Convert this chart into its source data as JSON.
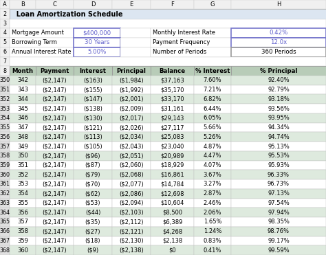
{
  "title": "Loan Amortization Schedule",
  "info_labels_left": [
    "Mortgage Amount",
    "Borrowing Term",
    "Annual Interest Rate"
  ],
  "info_values_left": [
    "$400,000",
    "30 Years",
    "5.00%"
  ],
  "info_labels_right": [
    "Monthly Interest Rate",
    "Payment Frequency",
    "Number of Periods"
  ],
  "info_values_right": [
    "0.42%",
    "12.0x",
    "360 Periods"
  ],
  "col_headers": [
    "Month",
    "Payment",
    "Interest",
    "Principal",
    "Balance",
    "% Interest",
    "% Principal"
  ],
  "row_numbers": [
    350,
    351,
    352,
    353,
    354,
    355,
    356,
    357,
    358,
    359,
    360,
    361,
    362,
    363,
    364,
    365,
    366,
    367,
    368
  ],
  "table_data": [
    [
      "342",
      "($2,147)",
      "($163)",
      "($1,984)",
      "$37,163",
      "7.60%",
      "92.40%"
    ],
    [
      "343",
      "($2,147)",
      "($155)",
      "($1,992)",
      "$35,170",
      "7.21%",
      "92.79%"
    ],
    [
      "344",
      "($2,147)",
      "($147)",
      "($2,001)",
      "$33,170",
      "6.82%",
      "93.18%"
    ],
    [
      "345",
      "($2,147)",
      "($138)",
      "($2,009)",
      "$31,161",
      "6.44%",
      "93.56%"
    ],
    [
      "346",
      "($2,147)",
      "($130)",
      "($2,017)",
      "$29,143",
      "6.05%",
      "93.95%"
    ],
    [
      "347",
      "($2,147)",
      "($121)",
      "($2,026)",
      "$27,117",
      "5.66%",
      "94.34%"
    ],
    [
      "348",
      "($2,147)",
      "($113)",
      "($2,034)",
      "$25,083",
      "5.26%",
      "94.74%"
    ],
    [
      "349",
      "($2,147)",
      "($105)",
      "($2,043)",
      "$23,040",
      "4.87%",
      "95.13%"
    ],
    [
      "350",
      "($2,147)",
      "($96)",
      "($2,051)",
      "$20,989",
      "4.47%",
      "95.53%"
    ],
    [
      "351",
      "($2,147)",
      "($87)",
      "($2,060)",
      "$18,929",
      "4.07%",
      "95.93%"
    ],
    [
      "352",
      "($2,147)",
      "($79)",
      "($2,068)",
      "$16,861",
      "3.67%",
      "96.33%"
    ],
    [
      "353",
      "($2,147)",
      "($70)",
      "($2,077)",
      "$14,784",
      "3.27%",
      "96.73%"
    ],
    [
      "354",
      "($2,147)",
      "($62)",
      "($2,086)",
      "$12,698",
      "2.87%",
      "97.13%"
    ],
    [
      "355",
      "($2,147)",
      "($53)",
      "($2,094)",
      "$10,604",
      "2.46%",
      "97.54%"
    ],
    [
      "356",
      "($2,147)",
      "($44)",
      "($2,103)",
      "$8,500",
      "2.06%",
      "97.94%"
    ],
    [
      "357",
      "($2,147)",
      "($35)",
      "($2,112)",
      "$6,389",
      "1.65%",
      "98.35%"
    ],
    [
      "358",
      "($2,147)",
      "($27)",
      "($2,121)",
      "$4,268",
      "1.24%",
      "98.76%"
    ],
    [
      "359",
      "($2,147)",
      "($18)",
      "($2,130)",
      "$2,138",
      "0.83%",
      "99.17%"
    ],
    [
      "360",
      "($2,147)",
      "($9)",
      "($2,138)",
      "$0",
      "0.41%",
      "99.59%"
    ]
  ],
  "header_bg": "#b8ccb8",
  "alt_row_bg": "#deeade",
  "white_row_bg": "#ffffff",
  "title_bg": "#dce6f1",
  "value_box_color": "#6060cc",
  "value_box_border": "#7777cc",
  "row_num_bg": "#e0e0e0",
  "spreadsheet_bg": "#f0f0f0",
  "col_header_line": "#666666",
  "cell_border": "#c0c0c0",
  "dark_border": "#999999"
}
